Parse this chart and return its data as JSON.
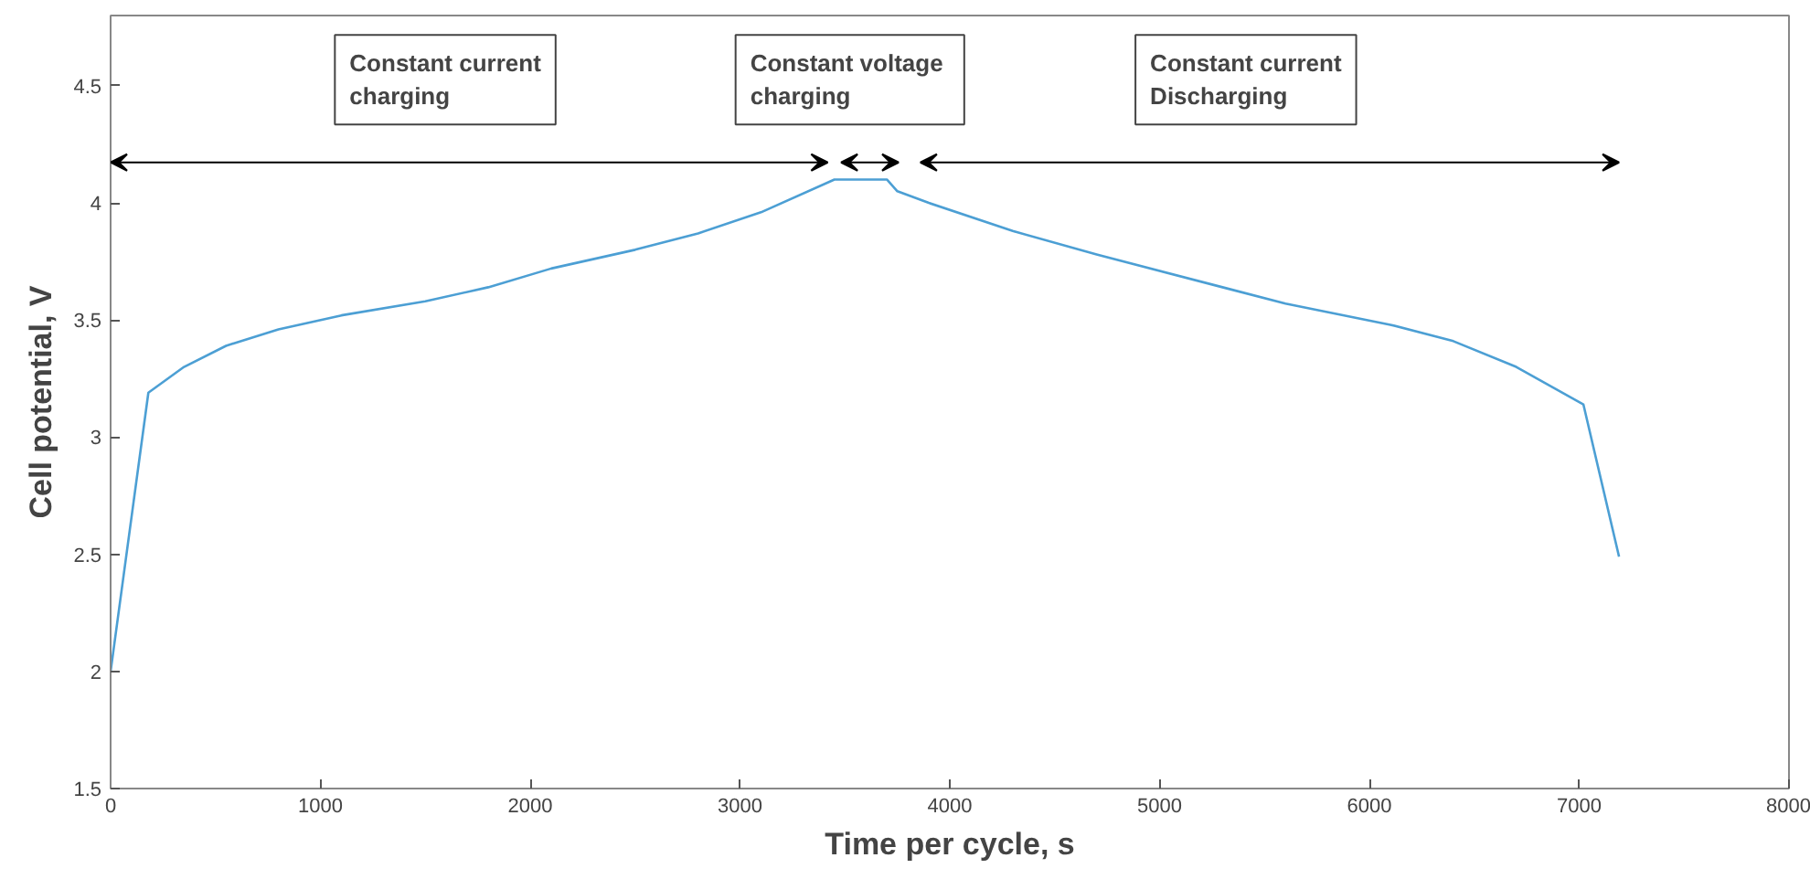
{
  "chart_data": {
    "type": "line",
    "xlabel": "Time per cycle, s",
    "ylabel": "Cell potential, V",
    "x": [
      0,
      180,
      350,
      550,
      800,
      1100,
      1500,
      1800,
      2100,
      2500,
      2800,
      3100,
      3450,
      3700,
      3750,
      3900,
      4300,
      4700,
      5300,
      5600,
      6100,
      6400,
      6700,
      7020,
      7190
    ],
    "series": [
      {
        "color": "#4c9fd4",
        "values": [
          2.0,
          3.19,
          3.3,
          3.39,
          3.46,
          3.52,
          3.58,
          3.64,
          3.72,
          3.8,
          3.87,
          3.96,
          4.1,
          4.1,
          4.05,
          4.0,
          3.88,
          3.78,
          3.64,
          3.57,
          3.48,
          3.41,
          3.3,
          3.14,
          2.49
        ]
      }
    ],
    "xlim": [
      0,
      8000
    ],
    "xticks": [
      0,
      1000,
      2000,
      3000,
      4000,
      5000,
      6000,
      7000,
      8000
    ],
    "ylim": [
      1.5,
      4.8
    ],
    "yticks": [
      1.5,
      2,
      2.5,
      3,
      3.5,
      4,
      4.5
    ],
    "annotations": [
      "Constant current\ncharging",
      "Constant  voltage\ncharging",
      "Constant current\nDischarging"
    ],
    "grid": false,
    "marker": "none",
    "line_style": "solid"
  }
}
